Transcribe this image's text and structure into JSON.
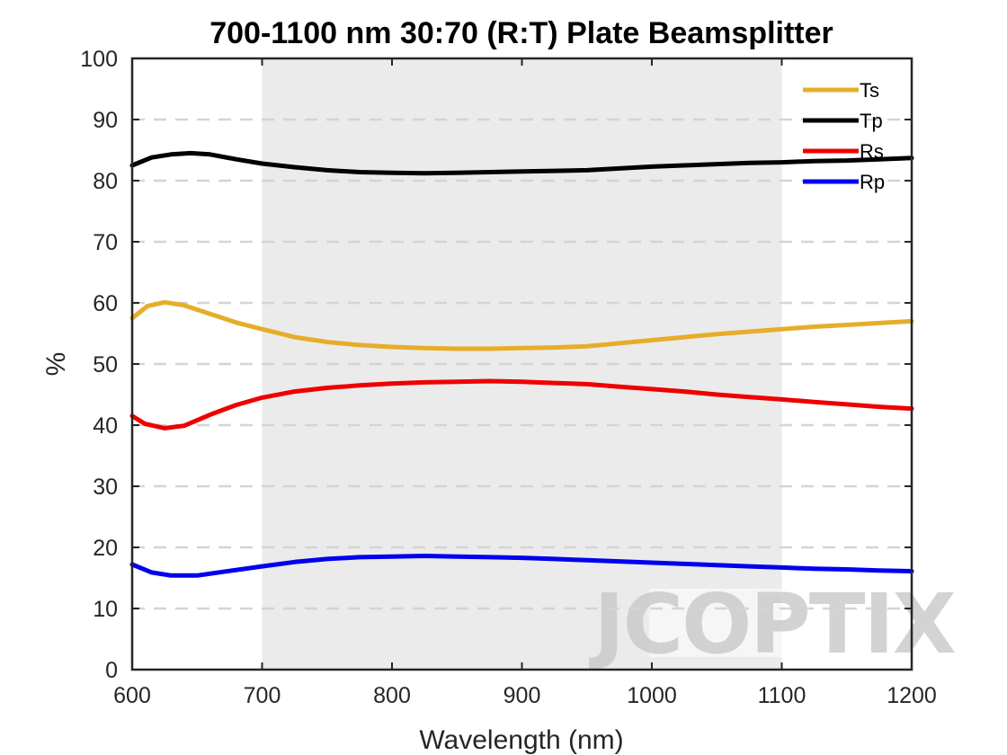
{
  "chart_data": {
    "type": "line",
    "title": "700-1100 nm 30:70 (R:T) Plate Beamsplitter",
    "xlabel": "Wavelength (nm)",
    "ylabel": "%",
    "xlim": [
      600,
      1200
    ],
    "ylim": [
      0,
      100
    ],
    "xticks": [
      600,
      700,
      800,
      900,
      1000,
      1100,
      1200
    ],
    "yticks": [
      0,
      10,
      20,
      30,
      40,
      50,
      60,
      70,
      80,
      90,
      100
    ],
    "grid": "horizontal-dashed",
    "legend_position": "top-right",
    "design_band": [
      700,
      1100
    ],
    "band_color": "#ebebeb",
    "watermark": "JCOPTIX",
    "series": [
      {
        "name": "Ts",
        "color": "#e6ad2a",
        "points": [
          [
            600,
            57.5
          ],
          [
            612,
            59.5
          ],
          [
            625,
            60.1
          ],
          [
            640,
            59.6
          ],
          [
            660,
            58.2
          ],
          [
            680,
            56.8
          ],
          [
            700,
            55.7
          ],
          [
            725,
            54.4
          ],
          [
            750,
            53.6
          ],
          [
            775,
            53.1
          ],
          [
            800,
            52.8
          ],
          [
            825,
            52.6
          ],
          [
            850,
            52.5
          ],
          [
            875,
            52.5
          ],
          [
            900,
            52.6
          ],
          [
            925,
            52.7
          ],
          [
            950,
            52.9
          ],
          [
            975,
            53.4
          ],
          [
            1000,
            53.9
          ],
          [
            1025,
            54.4
          ],
          [
            1050,
            54.9
          ],
          [
            1075,
            55.3
          ],
          [
            1100,
            55.7
          ],
          [
            1125,
            56.1
          ],
          [
            1150,
            56.4
          ],
          [
            1175,
            56.7
          ],
          [
            1200,
            57.0
          ]
        ]
      },
      {
        "name": "Tp",
        "color": "#000000",
        "points": [
          [
            600,
            82.5
          ],
          [
            615,
            83.8
          ],
          [
            630,
            84.3
          ],
          [
            645,
            84.5
          ],
          [
            660,
            84.3
          ],
          [
            680,
            83.5
          ],
          [
            700,
            82.8
          ],
          [
            725,
            82.2
          ],
          [
            750,
            81.7
          ],
          [
            775,
            81.4
          ],
          [
            800,
            81.3
          ],
          [
            825,
            81.2
          ],
          [
            850,
            81.3
          ],
          [
            875,
            81.4
          ],
          [
            900,
            81.5
          ],
          [
            925,
            81.6
          ],
          [
            950,
            81.7
          ],
          [
            975,
            82.0
          ],
          [
            1000,
            82.3
          ],
          [
            1025,
            82.5
          ],
          [
            1050,
            82.7
          ],
          [
            1075,
            82.9
          ],
          [
            1100,
            83.0
          ],
          [
            1125,
            83.2
          ],
          [
            1150,
            83.3
          ],
          [
            1175,
            83.5
          ],
          [
            1200,
            83.7
          ]
        ]
      },
      {
        "name": "Rs",
        "color": "#ef0000",
        "points": [
          [
            600,
            41.5
          ],
          [
            610,
            40.2
          ],
          [
            625,
            39.5
          ],
          [
            640,
            39.9
          ],
          [
            660,
            41.7
          ],
          [
            680,
            43.3
          ],
          [
            700,
            44.5
          ],
          [
            725,
            45.5
          ],
          [
            750,
            46.1
          ],
          [
            775,
            46.5
          ],
          [
            800,
            46.8
          ],
          [
            825,
            47.0
          ],
          [
            850,
            47.1
          ],
          [
            875,
            47.2
          ],
          [
            900,
            47.1
          ],
          [
            925,
            46.9
          ],
          [
            950,
            46.7
          ],
          [
            975,
            46.3
          ],
          [
            1000,
            45.9
          ],
          [
            1025,
            45.5
          ],
          [
            1050,
            45.0
          ],
          [
            1075,
            44.6
          ],
          [
            1100,
            44.2
          ],
          [
            1125,
            43.8
          ],
          [
            1150,
            43.4
          ],
          [
            1175,
            43.0
          ],
          [
            1200,
            42.7
          ]
        ]
      },
      {
        "name": "Rp",
        "color": "#0000ef",
        "points": [
          [
            600,
            17.2
          ],
          [
            615,
            15.9
          ],
          [
            630,
            15.4
          ],
          [
            650,
            15.4
          ],
          [
            670,
            16.0
          ],
          [
            700,
            16.9
          ],
          [
            725,
            17.6
          ],
          [
            750,
            18.1
          ],
          [
            775,
            18.4
          ],
          [
            800,
            18.5
          ],
          [
            825,
            18.6
          ],
          [
            850,
            18.5
          ],
          [
            875,
            18.4
          ],
          [
            900,
            18.3
          ],
          [
            925,
            18.1
          ],
          [
            950,
            17.9
          ],
          [
            975,
            17.7
          ],
          [
            1000,
            17.5
          ],
          [
            1025,
            17.3
          ],
          [
            1050,
            17.1
          ],
          [
            1075,
            16.9
          ],
          [
            1100,
            16.7
          ],
          [
            1125,
            16.5
          ],
          [
            1150,
            16.4
          ],
          [
            1175,
            16.2
          ],
          [
            1200,
            16.1
          ]
        ]
      }
    ]
  }
}
